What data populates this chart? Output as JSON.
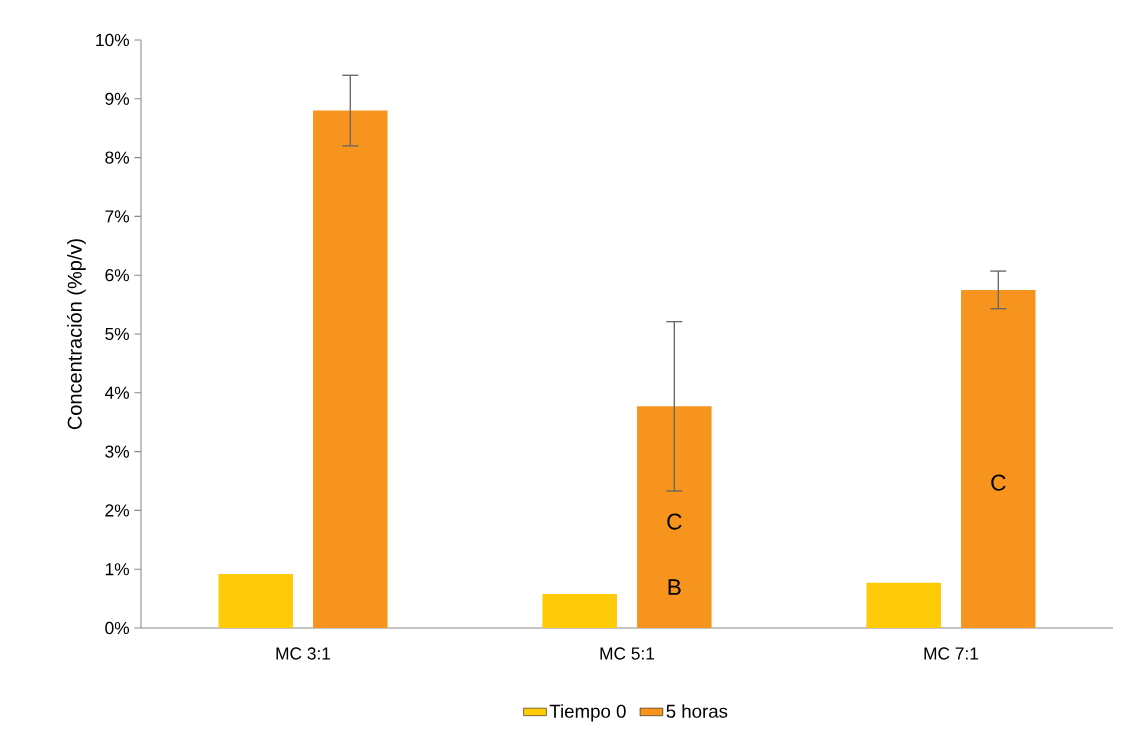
{
  "chart_data": {
    "type": "bar",
    "ylabel": "Concentración (%p/v)",
    "categories": [
      "MC 3:1",
      "MC 5:1",
      "MC 7:1"
    ],
    "series": [
      {
        "name": "Tiempo 0",
        "color": "#ffca08",
        "values": [
          0.92,
          0.58,
          0.77
        ]
      },
      {
        "name": "5 horas",
        "color": "#f7941d",
        "values": [
          8.8,
          3.77,
          5.75
        ],
        "errors": [
          0.6,
          1.44,
          0.32
        ]
      }
    ],
    "ylim": [
      0,
      10
    ],
    "yticks": [
      {
        "value": 0,
        "label": "0%"
      },
      {
        "value": 1,
        "label": "1%"
      },
      {
        "value": 2,
        "label": "2%"
      },
      {
        "value": 3,
        "label": "3%"
      },
      {
        "value": 4,
        "label": "4%"
      },
      {
        "value": 5,
        "label": "5%"
      },
      {
        "value": 6,
        "label": "6%"
      },
      {
        "value": 7,
        "label": "7%"
      },
      {
        "value": 8,
        "label": "8%"
      },
      {
        "value": 9,
        "label": "9%"
      },
      {
        "value": 10,
        "label": "10%"
      }
    ],
    "annotations": [
      "C",
      "B",
      "C"
    ],
    "legend": "bottom",
    "grid": false
  }
}
